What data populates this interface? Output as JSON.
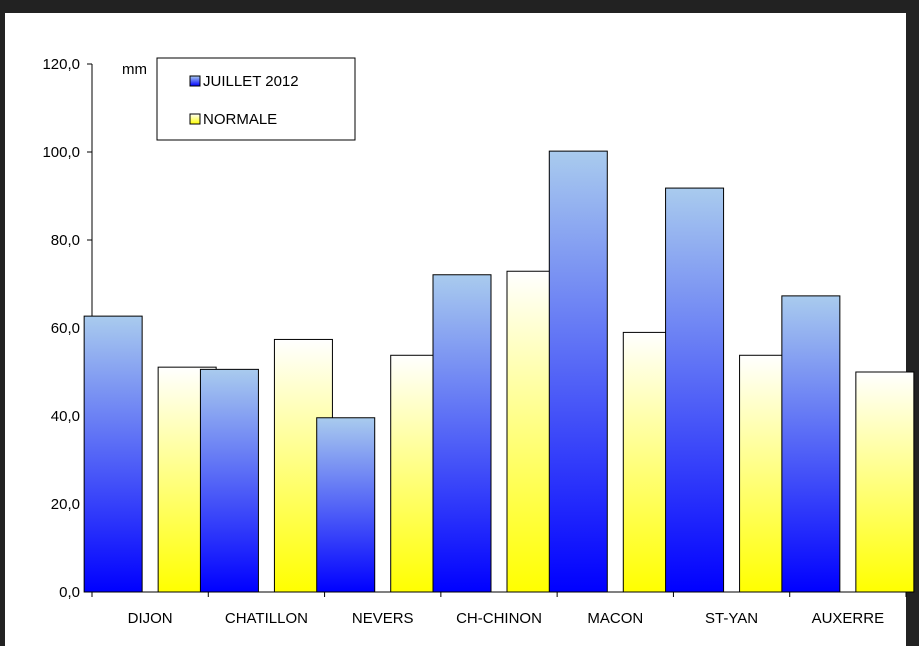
{
  "chart_data": {
    "type": "bar",
    "unit_label": "mm",
    "categories": [
      "DIJON",
      "CHATILLON",
      "NEVERS",
      "CH-CHINON",
      "MACON",
      "ST-YAN",
      "AUXERRE"
    ],
    "series": [
      {
        "name": "JUILLET 2012",
        "values": [
          62.7,
          50.6,
          39.6,
          72.1,
          100.2,
          91.8,
          67.3
        ]
      },
      {
        "name": "NORMALE",
        "values": [
          51.1,
          57.4,
          53.8,
          72.9,
          59.0,
          53.8,
          50.0
        ]
      }
    ],
    "y_ticks": [
      "0,0",
      "20,0",
      "40,0",
      "60,0",
      "80,0",
      "100,0",
      "120,0"
    ],
    "ylim": [
      0,
      120
    ],
    "grid": false,
    "legend_position": "top-left",
    "colors": {
      "series1_top": "#a9cbee",
      "series1_bottom": "#0000ff",
      "series2_top": "#ffffff",
      "series2_bottom": "#ffff00",
      "outline": "#000000"
    }
  }
}
